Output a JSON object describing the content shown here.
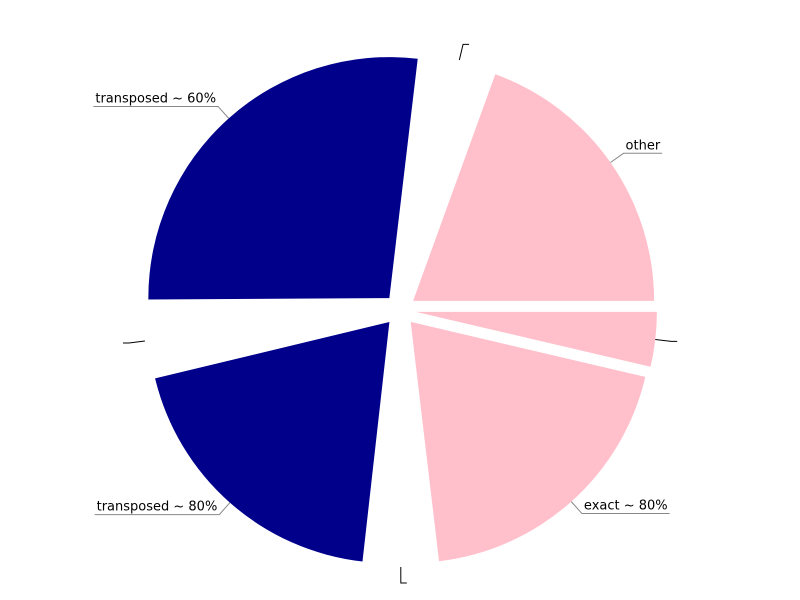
{
  "chart_data": {
    "type": "pie",
    "title": "",
    "slices": [
      {
        "label": "",
        "value": 3.8,
        "color": "#ffc0cb"
      },
      {
        "label": "exact ~ 80%",
        "value": 20.2,
        "color": "#ffc0cb"
      },
      {
        "label": "",
        "value": 3.8,
        "color": "#ffffff"
      },
      {
        "label": "transposed ~ 80%",
        "value": 20.2,
        "color": "#00008b"
      },
      {
        "label": "",
        "value": 3.8,
        "color": "#ffffff"
      },
      {
        "label": "transposed ~ 60%",
        "value": 28.0,
        "color": "#00008b"
      },
      {
        "label": "",
        "value": 3.8,
        "color": "#ffffff"
      },
      {
        "label": "other",
        "value": 20.2,
        "color": "#ffc0cb"
      }
    ],
    "start_angle_deg": 0,
    "direction": "clockwise",
    "legend": "none"
  }
}
